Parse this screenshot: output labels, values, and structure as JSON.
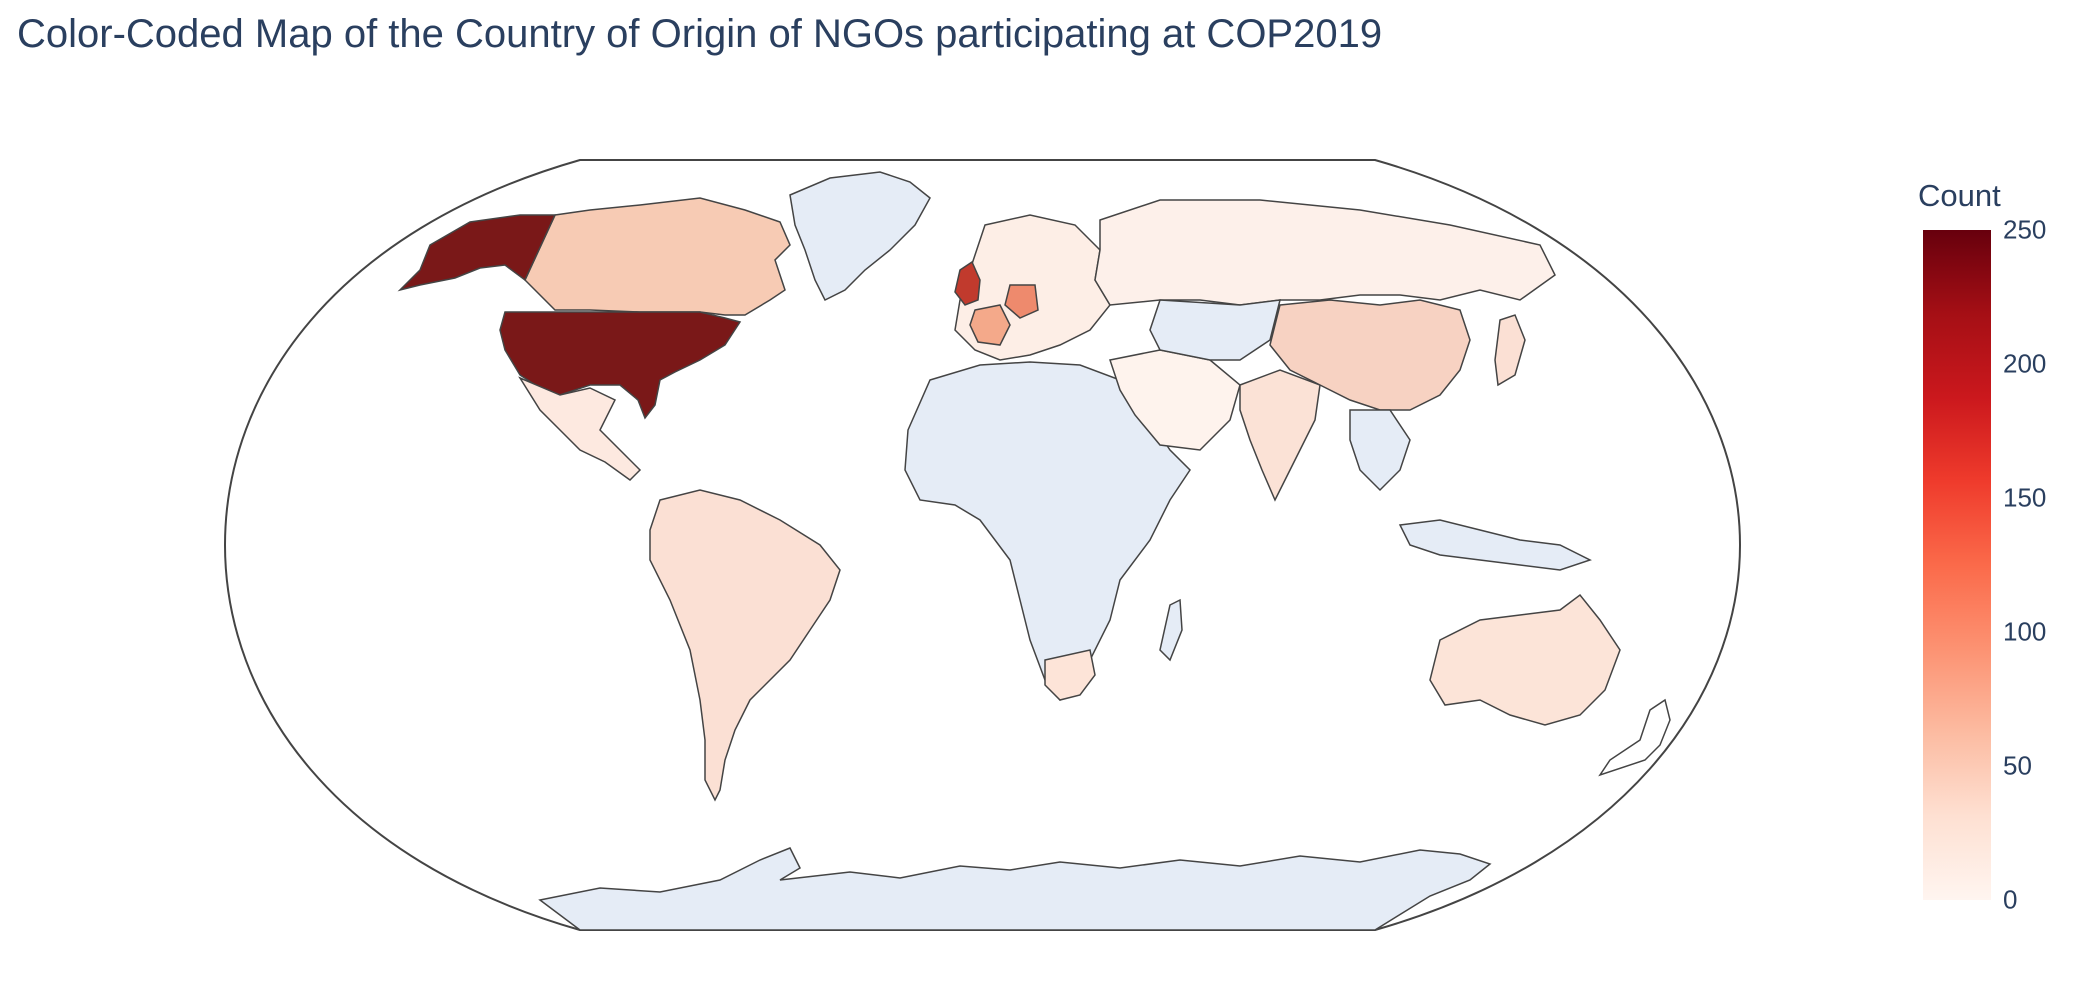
{
  "title": "Color-Coded Map of the Country of Origin of NGOs participating at COP2019",
  "colorbar": {
    "title": "Count",
    "ticks": [
      "250",
      "200",
      "150",
      "100",
      "50",
      "0"
    ],
    "colorscale": [
      "#fff5f0",
      "#fee0d2",
      "#fcbba1",
      "#fc9272",
      "#fb6a4a",
      "#ef3b2c",
      "#cb181d",
      "#a50f15",
      "#67000d"
    ],
    "range": [
      0,
      250
    ]
  },
  "map": {
    "projection": "robinson",
    "no_data_color": "#e5ecf6",
    "border_color": "#444444"
  },
  "chart_data": {
    "type": "choropleth",
    "title": "Color-Coded Map of the Country of Origin of NGOs participating at COP2019",
    "colorbar_title": "Count",
    "zrange": [
      0,
      250
    ],
    "regions": [
      {
        "name": "United States",
        "value": 240
      },
      {
        "name": "United Kingdom",
        "value": 170
      },
      {
        "name": "Germany",
        "value": 90
      },
      {
        "name": "France",
        "value": 60
      },
      {
        "name": "Canada",
        "value": 45
      },
      {
        "name": "China",
        "value": 40
      },
      {
        "name": "Brazil",
        "value": 25
      },
      {
        "name": "Australia",
        "value": 25
      },
      {
        "name": "India",
        "value": 20
      },
      {
        "name": "Spain",
        "value": 20
      },
      {
        "name": "Russia",
        "value": 8
      },
      {
        "name": "Mexico",
        "value": 10
      },
      {
        "name": "South Africa",
        "value": 15
      },
      {
        "name": "Japan",
        "value": 20
      },
      {
        "name": "Argentina",
        "value": 10
      }
    ]
  }
}
